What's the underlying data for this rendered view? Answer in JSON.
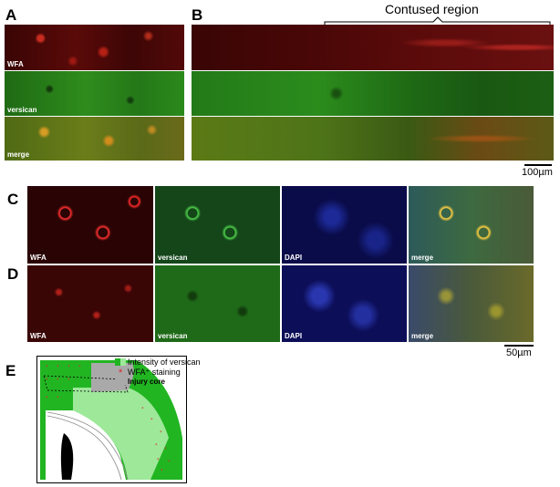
{
  "panels": {
    "a": "A",
    "b": "B",
    "c": "C",
    "d": "D",
    "e": "E"
  },
  "labels": {
    "wfa": "WFA",
    "versican": "versican",
    "merge": "merge",
    "dapi": "DAPI"
  },
  "contused_region": "Contused region",
  "scale_100": "100µm",
  "scale_50": "50µm",
  "legend": {
    "versican": "Intensity of versican",
    "wfa": "WFA⁺ staining",
    "injury": "Injury core"
  },
  "colors": {
    "dark_green": "#22b522",
    "light_green": "#9ee89a",
    "injury_gray": "#a9a9a9",
    "star_red": "#e0252d"
  }
}
